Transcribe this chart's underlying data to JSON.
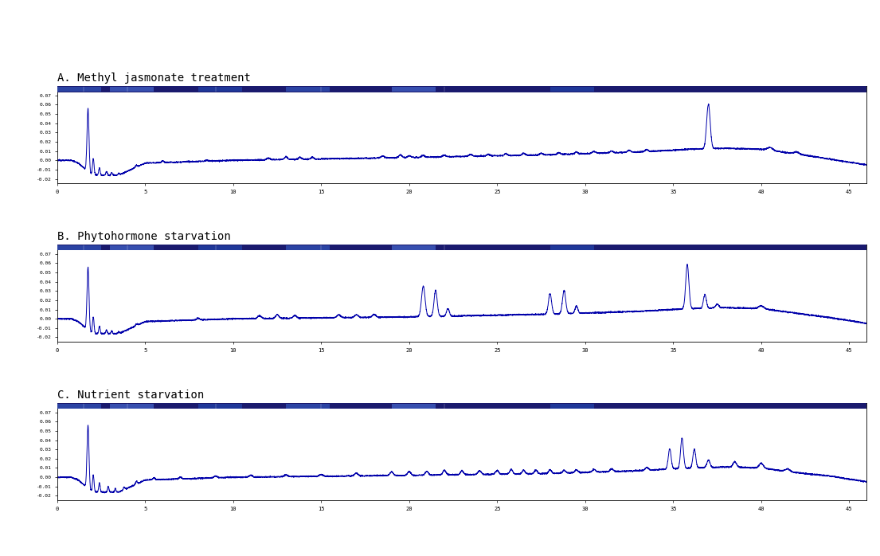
{
  "panel_titles": [
    "A. Methyl jasmonate treatment",
    "B. Phytohormone starvation",
    "C. Nutrient starvation"
  ],
  "title_fontsize": 10,
  "line_color": "#0000AA",
  "line_width": 0.7,
  "background_color": "#FFFFFF",
  "panel_bg": "#FFFFFF",
  "x_ticks": [
    0,
    5,
    10,
    15,
    20,
    25,
    30,
    35,
    40,
    45
  ],
  "ylim": [
    -0.025,
    0.08
  ],
  "xlim": [
    0,
    46
  ],
  "header_color": "#2222AA",
  "header_text_color": "#AAAAFF"
}
